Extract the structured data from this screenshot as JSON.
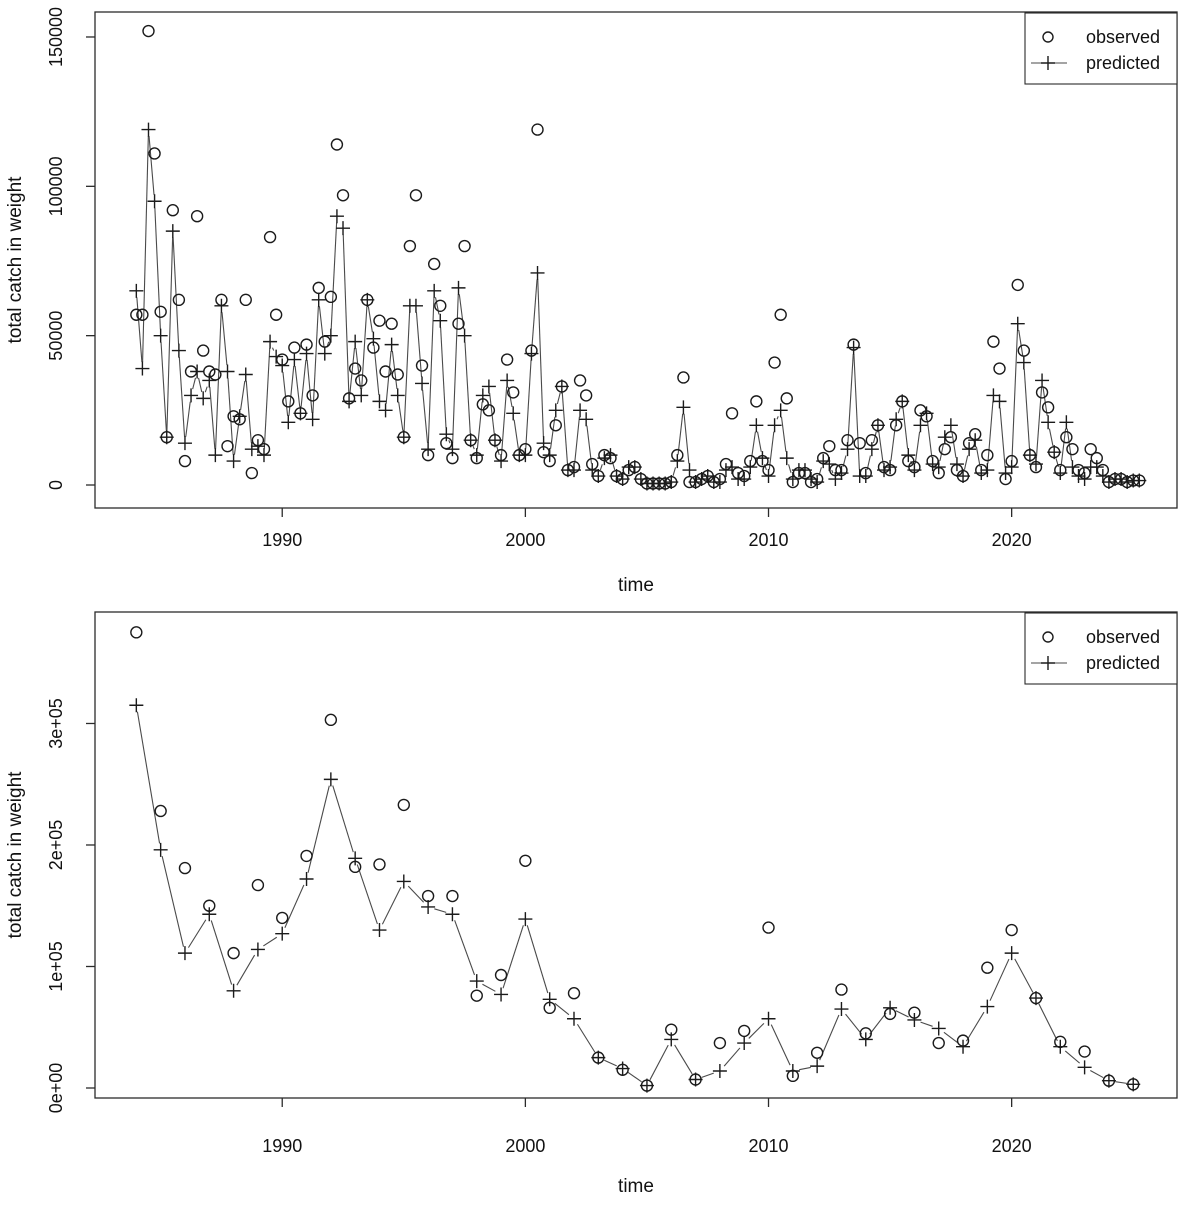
{
  "figure": {
    "background": "#ffffff",
    "marker_color": "#1b1b1b",
    "line_color": "#4a4a4a",
    "axis_color": "#2b2b2b"
  },
  "chart_data": [
    {
      "id": "quarterly",
      "type": "scatter",
      "title": "",
      "xlabel": "time",
      "ylabel": "total catch in weight",
      "grid": false,
      "legend": {
        "position": "top-right",
        "entries": [
          {
            "label": "observed",
            "marker": "circle"
          },
          {
            "label": "predicted",
            "marker": "plus-line"
          }
        ]
      },
      "xlim": [
        1982.3,
        2026.8
      ],
      "ylim": [
        -7700,
        158366
      ],
      "xticks": [
        1990,
        2000,
        2010,
        2020
      ],
      "xtick_labels": [
        "1990",
        "2000",
        "2010",
        "2020"
      ],
      "yticks": [
        0,
        50000,
        100000,
        150000
      ],
      "ytick_labels": [
        "0",
        "50000",
        "100000",
        "150000"
      ],
      "x_start": 1984.0,
      "x_step": 0.25,
      "series": [
        {
          "name": "observed",
          "marker": "circle",
          "connect": false,
          "values": [
            57000,
            57000,
            152000,
            111000,
            58000,
            16000,
            92000,
            62000,
            8000,
            38000,
            90000,
            45000,
            38000,
            37000,
            62000,
            13000,
            23000,
            22000,
            62000,
            4000,
            15000,
            12000,
            83000,
            57000,
            42000,
            28000,
            46000,
            24000,
            47000,
            30000,
            66000,
            48000,
            63000,
            114000,
            97000,
            29000,
            39000,
            35000,
            62000,
            46000,
            55000,
            38000,
            54000,
            37000,
            16000,
            80000,
            97000,
            40000,
            10000,
            74000,
            60000,
            14000,
            9000,
            54000,
            80000,
            15000,
            9000,
            27000,
            25000,
            15000,
            10000,
            42000,
            31000,
            10000,
            12000,
            45000,
            119000,
            11000,
            8000,
            20000,
            33000,
            5000,
            6000,
            35000,
            30000,
            7000,
            3000,
            10000,
            9000,
            3000,
            2000,
            5000,
            6000,
            2000,
            500,
            500,
            500,
            500,
            1000,
            10000,
            36000,
            1000,
            1000,
            2000,
            3000,
            1000,
            2000,
            7000,
            24000,
            4000,
            3000,
            8000,
            28000,
            8000,
            5000,
            41000,
            57000,
            29000,
            1000,
            4000,
            4000,
            1000,
            2000,
            9000,
            13000,
            5000,
            5000,
            15000,
            47000,
            14000,
            4000,
            15000,
            20000,
            6000,
            5000,
            20000,
            28000,
            8000,
            6000,
            25000,
            23000,
            8000,
            4000,
            12000,
            16000,
            5000,
            3000,
            14000,
            17000,
            5000,
            10000,
            48000,
            39000,
            2000,
            8000,
            67000,
            45000,
            10000,
            6000,
            31000,
            26000,
            11000,
            5000,
            16000,
            12000,
            5000,
            4000,
            12000,
            9000,
            5000,
            1000,
            2000,
            2000,
            1000,
            1500,
            1500
          ]
        },
        {
          "name": "predicted",
          "marker": "plus",
          "connect": true,
          "values": [
            65000,
            39000,
            119000,
            95000,
            50000,
            16000,
            85000,
            45000,
            14000,
            30000,
            38000,
            29000,
            35000,
            10000,
            60000,
            38000,
            8000,
            23000,
            37000,
            12000,
            13000,
            10000,
            48000,
            43000,
            40000,
            21000,
            42000,
            24000,
            44000,
            22000,
            62000,
            44000,
            50000,
            90000,
            86000,
            28000,
            48000,
            30000,
            62000,
            49000,
            28000,
            25000,
            47000,
            30000,
            16000,
            60000,
            60000,
            34000,
            12000,
            65000,
            55000,
            17000,
            12000,
            66000,
            50000,
            15000,
            10000,
            30000,
            33000,
            15000,
            8000,
            35000,
            24000,
            10000,
            10000,
            44000,
            71000,
            14000,
            10000,
            25000,
            33000,
            5000,
            5000,
            25000,
            22000,
            5000,
            3000,
            9000,
            10000,
            3000,
            2000,
            6000,
            6000,
            2000,
            500,
            500,
            500,
            500,
            1000,
            8000,
            26000,
            5000,
            1000,
            2000,
            3000,
            1000,
            1000,
            5000,
            6000,
            2000,
            2000,
            6000,
            20000,
            9000,
            3000,
            20000,
            25000,
            9000,
            2000,
            5000,
            5000,
            2000,
            1000,
            8000,
            7000,
            2000,
            4000,
            12000,
            46000,
            3000,
            3000,
            12000,
            20000,
            5000,
            6000,
            22000,
            28000,
            10000,
            5000,
            20000,
            24000,
            7000,
            6000,
            16000,
            20000,
            7000,
            3000,
            12000,
            15000,
            4000,
            5000,
            30000,
            28000,
            4000,
            6000,
            54000,
            41000,
            10000,
            7000,
            35000,
            21000,
            11000,
            4000,
            21000,
            6000,
            3000,
            2000,
            6000,
            6000,
            3000,
            1000,
            2000,
            2000,
            1000,
            1500,
            1500
          ]
        }
      ]
    },
    {
      "id": "annual",
      "type": "scatter",
      "title": "",
      "xlabel": "time",
      "ylabel": "total catch in weight",
      "grid": false,
      "legend": {
        "position": "top-right",
        "entries": [
          {
            "label": "observed",
            "marker": "circle"
          },
          {
            "label": "predicted",
            "marker": "plus-line"
          }
        ]
      },
      "xlim": [
        1982.3,
        2026.8
      ],
      "ylim": [
        -8230,
        391750
      ],
      "xticks": [
        1990,
        2000,
        2010,
        2020
      ],
      "xtick_labels": [
        "1990",
        "2000",
        "2010",
        "2020"
      ],
      "yticks": [
        0,
        100000,
        200000,
        300000
      ],
      "ytick_labels": [
        "0e+00",
        "1e+05",
        "2e+05",
        "3e+05"
      ],
      "x_start": 1984,
      "x_step": 1,
      "series": [
        {
          "name": "observed",
          "marker": "circle",
          "connect": false,
          "values": [
            375000,
            228000,
            181000,
            150000,
            111000,
            167000,
            140000,
            191000,
            303000,
            182000,
            184000,
            233000,
            158000,
            158000,
            76000,
            93000,
            187000,
            66000,
            78000,
            25000,
            15000,
            2000,
            48000,
            7000,
            37000,
            47000,
            132000,
            10000,
            29000,
            81000,
            45000,
            61000,
            62000,
            37000,
            39000,
            99000,
            130000,
            74000,
            38000,
            30000,
            6000,
            3000
          ]
        },
        {
          "name": "predicted",
          "marker": "plus",
          "connect": true,
          "values": [
            315000,
            196000,
            111000,
            143000,
            80000,
            114000,
            127000,
            172000,
            254000,
            189000,
            130000,
            170000,
            149000,
            143000,
            88000,
            77000,
            139000,
            73000,
            57000,
            25000,
            16000,
            2000,
            40000,
            7000,
            14000,
            37000,
            57000,
            14000,
            18000,
            65000,
            40000,
            66000,
            56000,
            49000,
            34000,
            67000,
            111000,
            74000,
            34000,
            17000,
            6000,
            3000
          ]
        }
      ]
    }
  ]
}
